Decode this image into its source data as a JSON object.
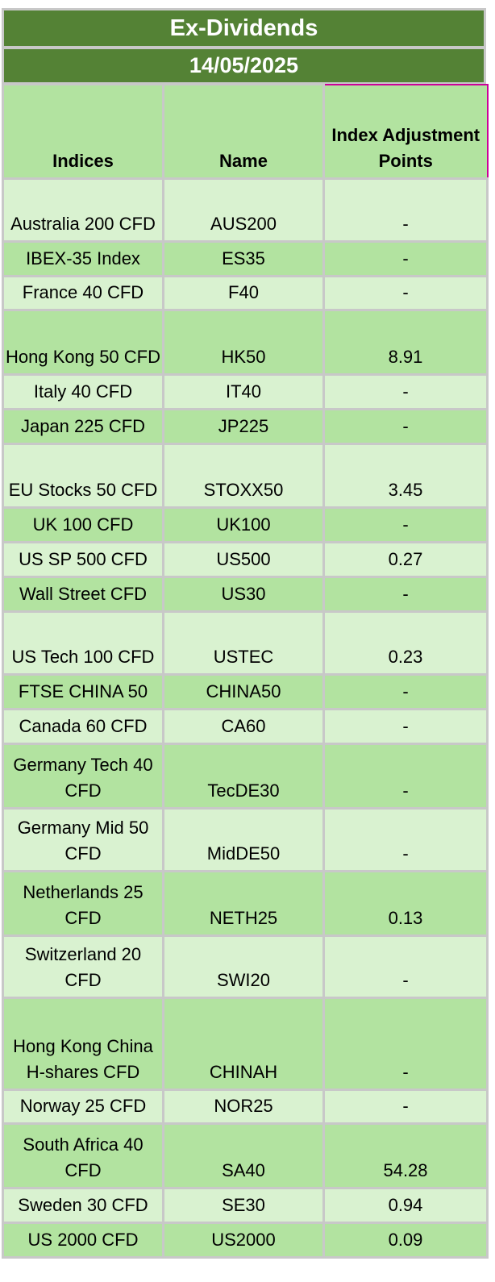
{
  "title": "Ex-Dividends",
  "date": "14/05/2025",
  "headers": {
    "indices": "Indices",
    "name": "Name",
    "adjustment": "Index Adjustment Points"
  },
  "rows": [
    {
      "index": "Australia 200 CFD",
      "name": "AUS200",
      "points": "-"
    },
    {
      "index": "IBEX-35 Index",
      "name": "ES35",
      "points": "-"
    },
    {
      "index": "France 40 CFD",
      "name": "F40",
      "points": "-"
    },
    {
      "index": "Hong Kong 50 CFD",
      "name": "HK50",
      "points": "8.91"
    },
    {
      "index": "Italy 40 CFD",
      "name": "IT40",
      "points": "-"
    },
    {
      "index": "Japan 225 CFD",
      "name": "JP225",
      "points": "-"
    },
    {
      "index": "EU Stocks 50 CFD",
      "name": "STOXX50",
      "points": "3.45"
    },
    {
      "index": "UK 100 CFD",
      "name": "UK100",
      "points": "-"
    },
    {
      "index": "US SP 500 CFD",
      "name": "US500",
      "points": "0.27"
    },
    {
      "index": "Wall Street CFD",
      "name": "US30",
      "points": "-"
    },
    {
      "index": "US Tech 100 CFD",
      "name": "USTEC",
      "points": "0.23"
    },
    {
      "index": "FTSE CHINA 50",
      "name": "CHINA50",
      "points": "-"
    },
    {
      "index": "Canada 60 CFD",
      "name": "CA60",
      "points": "-"
    },
    {
      "index": "Germany Tech 40 CFD",
      "name": "TecDE30",
      "points": "-"
    },
    {
      "index": "Germany Mid 50 CFD",
      "name": "MidDE50",
      "points": "-"
    },
    {
      "index": "Netherlands 25 CFD",
      "name": "NETH25",
      "points": "0.13"
    },
    {
      "index": "Switzerland 20 CFD",
      "name": "SWI20",
      "points": "-"
    },
    {
      "index": "Hong Kong China H-shares CFD",
      "name": "CHINAH",
      "points": "-"
    },
    {
      "index": "Norway 25 CFD",
      "name": "NOR25",
      "points": "-"
    },
    {
      "index": "South Africa 40 CFD",
      "name": "SA40",
      "points": "54.28"
    },
    {
      "index": "Sweden 30 CFD",
      "name": "SE30",
      "points": "0.94"
    },
    {
      "index": "US 2000 CFD",
      "name": "US2000",
      "points": "0.09"
    }
  ],
  "colors": {
    "title_bg": "#548235",
    "row_light": "#d9f2d0",
    "row_dark": "#b2e3a0",
    "header_highlight": "#cc0099"
  }
}
